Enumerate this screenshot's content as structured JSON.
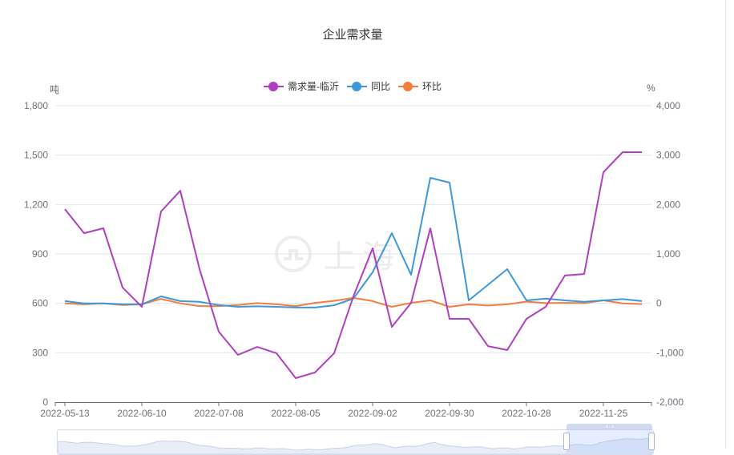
{
  "title": "企业需求量",
  "legend": [
    {
      "name": "需求量-临沂",
      "color": "#b03fbf"
    },
    {
      "name": "同比",
      "color": "#3c98d9"
    },
    {
      "name": "环比",
      "color": "#f27d3d"
    }
  ],
  "left_axis": {
    "unit": "吨",
    "ticks": [
      "1,800",
      "1,500",
      "1,200",
      "900",
      "600",
      "300",
      "0"
    ]
  },
  "right_axis": {
    "unit": "%",
    "ticks": [
      "4,000",
      "3,000",
      "2,000",
      "1,000",
      "0",
      "-1,000",
      "-2,000"
    ]
  },
  "x_axis": {
    "tick_labels": [
      "2022-05-13",
      "2022-06-10",
      "2022-07-08",
      "2022-08-05",
      "2022-09-02",
      "2022-09-30",
      "2022-10-28",
      "2022-11-25"
    ]
  },
  "watermark": {
    "text": "上海"
  },
  "data_zoom": {
    "start_percent": 85.5,
    "end_percent": 100
  },
  "chart_data": {
    "type": "line",
    "title": "企业需求量",
    "xlabel": "",
    "ylabel": "吨",
    "ylabel_right": "%",
    "ylim": [
      0,
      1800
    ],
    "ylim_right": [
      -2000,
      4000
    ],
    "grid": true,
    "legend_position": "top",
    "x": [
      "2022-05-13",
      "2022-05-20",
      "2022-05-27",
      "2022-06-03",
      "2022-06-10",
      "2022-06-17",
      "2022-06-24",
      "2022-07-01",
      "2022-07-08",
      "2022-07-15",
      "2022-07-22",
      "2022-07-29",
      "2022-08-05",
      "2022-08-12",
      "2022-08-19",
      "2022-08-26",
      "2022-09-02",
      "2022-09-09",
      "2022-09-16",
      "2022-09-23",
      "2022-09-30",
      "2022-10-07",
      "2022-10-14",
      "2022-10-21",
      "2022-10-28",
      "2022-11-04",
      "2022-11-11",
      "2022-11-18",
      "2022-11-25",
      "2022-12-02",
      "2022-12-09"
    ],
    "series": [
      {
        "name": "需求量-临沂",
        "axis": "left",
        "color": "#b03fbf",
        "values": [
          1172,
          1026,
          1056,
          696,
          579,
          1158,
          1284,
          808,
          428,
          287,
          335,
          297,
          146,
          180,
          297,
          642,
          934,
          457,
          603,
          1055,
          506,
          506,
          340,
          316,
          506,
          579,
          769,
          778,
          1396,
          1518,
          1518
        ]
      },
      {
        "name": "同比",
        "axis": "right",
        "color": "#3c98d9",
        "values": [
          45,
          0,
          0,
          -20,
          -20,
          140,
          45,
          30,
          -35,
          -70,
          -60,
          -70,
          -85,
          -85,
          -40,
          95,
          628,
          1422,
          579,
          2541,
          2444,
          60,
          375,
          692,
          60,
          95,
          60,
          30,
          60,
          85,
          45
        ]
      },
      {
        "name": "环比",
        "axis": "right",
        "color": "#f27d3d",
        "values": [
          0,
          -20,
          0,
          -35,
          -20,
          90,
          0,
          -55,
          -55,
          -35,
          5,
          -20,
          -55,
          10,
          50,
          110,
          45,
          -70,
          10,
          60,
          -70,
          -20,
          -45,
          -20,
          35,
          5,
          10,
          5,
          60,
          0,
          -15
        ]
      }
    ]
  }
}
